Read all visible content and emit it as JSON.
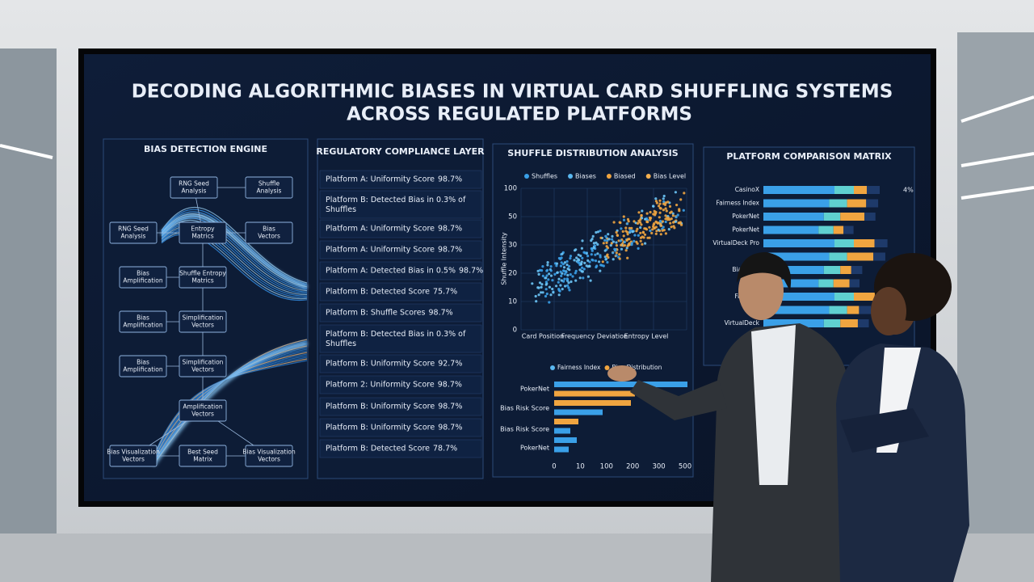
{
  "title": [
    "DECODING ALGORITHMIC BIASES IN VIRTUAL CARD SHUFFLING SYSTEMS",
    "ACROSS REGULATED PLATFORMS"
  ],
  "bias_engine": {
    "heading": "BIAS DETECTION ENGINE",
    "nodes": [
      "RNG Seed Analysis",
      "Shuffle Analysis",
      "RNG Seed Analysis",
      "Entropy Matrics",
      "Bias Vectors",
      "Bias Amplification",
      "Shuffle Entropy Matrics",
      "Bias Amplification",
      "Simplification Vectors",
      "Bias Amplification",
      "Simplification Vectors",
      "Amplification Vectors",
      "Bias Visualization Vectors",
      "Best Seed Matrix",
      "Bias Visualization Vectors"
    ]
  },
  "compliance": {
    "heading": "REGULATORY COMPLIANCE LAYER",
    "rows": [
      {
        "label": "Platform A: Uniformity Score",
        "value": "98.7%",
        "tone": "#ffffff"
      },
      {
        "label": "Platform B: Detected Bias in 0.3% of Shuffles",
        "tone": "#ffffff"
      },
      {
        "label": "Platform A: Uniformity Score",
        "value": "98.7%",
        "tone": "#6ee26a"
      },
      {
        "label": "Platform A: Uniformity Score",
        "value": "98.7%",
        "tone": "#ffffff"
      },
      {
        "label": "Platform A: Detected Bias in 0.5%",
        "value": "98.7%",
        "tone": "#6ee26a"
      },
      {
        "label": "Platform B: Detected Score",
        "value": "75.7%",
        "tone": "#ffffff"
      },
      {
        "label": "Platform B: Shuffle Scores",
        "value": "98.7%",
        "tone": "#ffffff"
      },
      {
        "label": "Platform B: Detected Bias in 0.3% of Shuffles",
        "tone": "#ffffff"
      },
      {
        "label": "Platform B: Uniformity Score",
        "value": "92.7%",
        "tone": "#f5a03a"
      },
      {
        "label": "Platform 2: Uniformity Score",
        "value": "98.7%",
        "tone": "#ffffff"
      },
      {
        "label": "Platform B: Uniformity Score",
        "value": "98.7%",
        "tone": "#ffffff"
      },
      {
        "label": "Platform B: Uniformity Score",
        "value": "98.7%",
        "tone": "#ffffff"
      },
      {
        "label": "Platform B: Detected Score",
        "value": "78.7%",
        "tone": "#ffffff"
      }
    ]
  },
  "distribution": {
    "heading": "SHUFFLE DISTRIBUTION ANALYSIS",
    "legend": [
      {
        "name": "Shuffles",
        "color": "#3aa0e8"
      },
      {
        "name": "Biases",
        "color": "#5ab8f0"
      },
      {
        "name": "Biased",
        "color": "#f0a540"
      },
      {
        "name": "Bias Level",
        "color": "#f5b050"
      }
    ],
    "y_label": "Shuffle Intensity",
    "yticks": [
      100,
      50,
      30,
      20,
      10,
      0
    ],
    "x_labels": [
      "Card Position",
      "Frequency Deviation",
      "Entropy Level"
    ],
    "bar_legend": [
      {
        "name": "Fairness Index",
        "color": "#5ab8f0"
      },
      {
        "name": "Bias Distribution",
        "color": "#f0a540"
      }
    ],
    "bar_categories": [
      "PokerNet",
      "Bias Risk Score",
      "Bias Risk Score",
      "PokerNet"
    ],
    "xticks": [
      0,
      10,
      100,
      200,
      300,
      500
    ]
  },
  "matrix": {
    "heading": "PLATFORM COMPARISON MATRIX",
    "labels": [
      "CasinoX",
      "Fairness Index",
      "PokerNet",
      "PokerNet",
      "VirtualDeck Pro",
      "Bias Risk",
      "Fairness",
      "VirtualDeck"
    ],
    "annotation": "4%"
  }
}
